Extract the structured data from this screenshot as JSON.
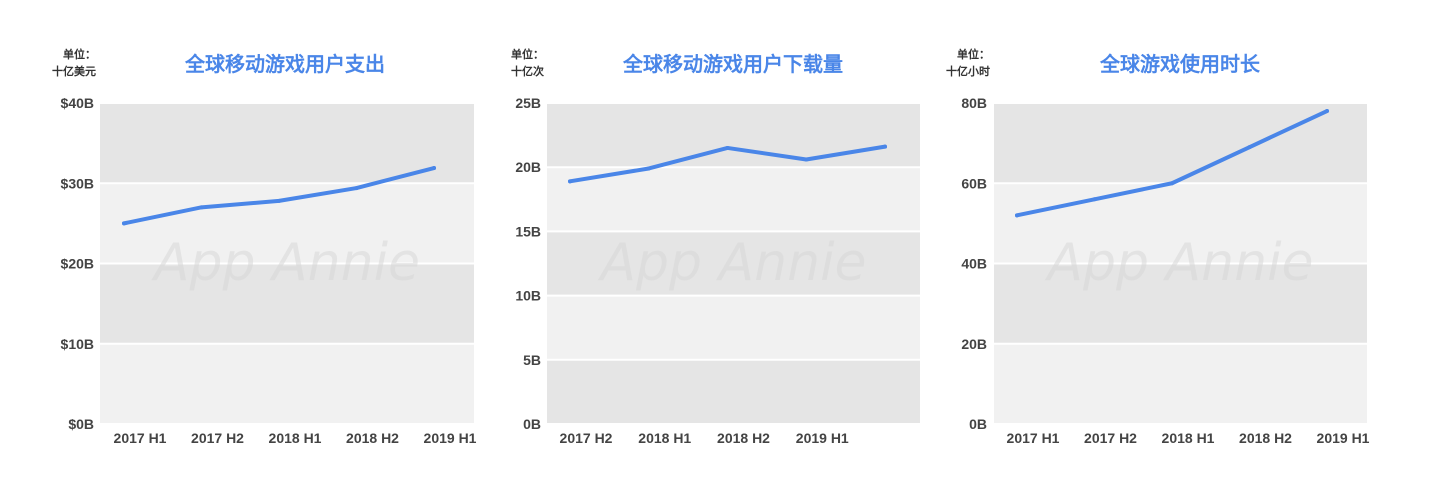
{
  "colors": {
    "line": "#4a86e8",
    "band_dark": "#e5e5e5",
    "band_light": "#f1f1f1",
    "text": "#444444",
    "title": "#4a86e8"
  },
  "watermark": "App Annie",
  "chart_data": [
    {
      "type": "line",
      "title": "全球移动游戏用户支出",
      "unit_line1": "单位：",
      "unit_line2": "十亿美元",
      "categories": [
        "2017 H1",
        "2017 H2",
        "2018 H1",
        "2018 H2",
        "2019 H1"
      ],
      "values": [
        25.0,
        27.0,
        27.8,
        29.4,
        31.9
      ],
      "ylim": [
        0,
        40
      ],
      "yticks": [
        0,
        10,
        20,
        30,
        40
      ],
      "ytick_labels": [
        "$0B",
        "$10B",
        "$20B",
        "$30B",
        "$40B"
      ]
    },
    {
      "type": "line",
      "title": "全球移动游戏用户下载量",
      "unit_line1": "单位：",
      "unit_line2": "十亿次",
      "categories": [
        "2017 H2",
        "2018 H1",
        "2018 H2",
        "2019 H1",
        ""
      ],
      "values": [
        18.9,
        19.9,
        21.5,
        20.6,
        21.6
      ],
      "ylim": [
        0,
        25
      ],
      "yticks": [
        0,
        5,
        10,
        15,
        20,
        25
      ],
      "ytick_labels": [
        "0B",
        "5B",
        "10B",
        "15B",
        "20B",
        "25B"
      ]
    },
    {
      "type": "line",
      "title": "全球游戏使用时长",
      "unit_line1": "单位：",
      "unit_line2": "十亿小时",
      "categories": [
        "2017 H1",
        "2017 H2",
        "2018 H1",
        "2018 H2",
        "2019 H1"
      ],
      "values": [
        52,
        56,
        60,
        69,
        78
      ],
      "ylim": [
        0,
        80
      ],
      "yticks": [
        0,
        20,
        40,
        60,
        80
      ],
      "ytick_labels": [
        "0B",
        "20B",
        "40B",
        "60B",
        "80B"
      ]
    }
  ]
}
